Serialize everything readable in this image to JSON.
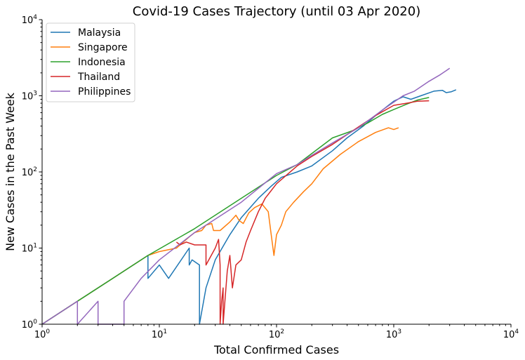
{
  "chart_data": {
    "type": "line",
    "title": "Covid-19 Cases Trajectory (until 03 Apr 2020)",
    "xlabel": "Total Confirmed Cases",
    "ylabel": "New Cases in the Past Week",
    "xscale": "log",
    "yscale": "log",
    "xlim": [
      1,
      10000
    ],
    "ylim": [
      1,
      10000
    ],
    "xticks": [
      {
        "base": "10",
        "exp": "0"
      },
      {
        "base": "10",
        "exp": "1"
      },
      {
        "base": "10",
        "exp": "2"
      },
      {
        "base": "10",
        "exp": "3"
      },
      {
        "base": "10",
        "exp": "4"
      }
    ],
    "yticks": [
      {
        "base": "10",
        "exp": "0"
      },
      {
        "base": "10",
        "exp": "1"
      },
      {
        "base": "10",
        "exp": "2"
      },
      {
        "base": "10",
        "exp": "3"
      },
      {
        "base": "10",
        "exp": "4"
      }
    ],
    "grid": false,
    "legend_position": "top-left",
    "series": [
      {
        "name": "Malaysia",
        "color": "#1f77b4",
        "points": [
          [
            1,
            1
          ],
          [
            2,
            2
          ],
          [
            4,
            4
          ],
          [
            8,
            8
          ],
          [
            8,
            4
          ],
          [
            10,
            6
          ],
          [
            12,
            4
          ],
          [
            18,
            10
          ],
          [
            18,
            6
          ],
          [
            19,
            7
          ],
          [
            22,
            6
          ],
          [
            22,
            1
          ],
          [
            25,
            3
          ],
          [
            30,
            7
          ],
          [
            40,
            15
          ],
          [
            50,
            25
          ],
          [
            70,
            45
          ],
          [
            90,
            65
          ],
          [
            110,
            85
          ],
          [
            150,
            100
          ],
          [
            200,
            120
          ],
          [
            300,
            190
          ],
          [
            400,
            280
          ],
          [
            550,
            400
          ],
          [
            700,
            550
          ],
          [
            900,
            750
          ],
          [
            1000,
            850
          ],
          [
            1200,
            970
          ],
          [
            1400,
            900
          ],
          [
            1700,
            1000
          ],
          [
            2200,
            1150
          ],
          [
            2600,
            1180
          ],
          [
            2800,
            1100
          ],
          [
            3100,
            1130
          ],
          [
            3400,
            1200
          ]
        ]
      },
      {
        "name": "Singapore",
        "color": "#ff7f0e",
        "points": [
          [
            1,
            1
          ],
          [
            2,
            2
          ],
          [
            4,
            4
          ],
          [
            8,
            8
          ],
          [
            10,
            9
          ],
          [
            14,
            10
          ],
          [
            18,
            14
          ],
          [
            20,
            16
          ],
          [
            23,
            17
          ],
          [
            25,
            20
          ],
          [
            28,
            21
          ],
          [
            29,
            17
          ],
          [
            33,
            17
          ],
          [
            40,
            22
          ],
          [
            45,
            27
          ],
          [
            48,
            23
          ],
          [
            52,
            21
          ],
          [
            58,
            29
          ],
          [
            65,
            34
          ],
          [
            75,
            38
          ],
          [
            85,
            30
          ],
          [
            90,
            15
          ],
          [
            95,
            8
          ],
          [
            100,
            15
          ],
          [
            110,
            20
          ],
          [
            120,
            30
          ],
          [
            140,
            40
          ],
          [
            170,
            55
          ],
          [
            200,
            70
          ],
          [
            250,
            110
          ],
          [
            350,
            170
          ],
          [
            500,
            250
          ],
          [
            700,
            330
          ],
          [
            900,
            380
          ],
          [
            1000,
            360
          ],
          [
            1100,
            380
          ]
        ]
      },
      {
        "name": "Indonesia",
        "color": "#2ca02c",
        "points": [
          [
            1,
            1
          ],
          [
            2,
            2
          ],
          [
            4,
            4
          ],
          [
            8,
            8
          ],
          [
            20,
            18
          ],
          [
            50,
            45
          ],
          [
            100,
            90
          ],
          [
            150,
            125
          ],
          [
            300,
            280
          ],
          [
            450,
            350
          ],
          [
            600,
            440
          ],
          [
            800,
            570
          ],
          [
            1000,
            660
          ],
          [
            1300,
            780
          ],
          [
            1600,
            880
          ],
          [
            2000,
            950
          ]
        ]
      },
      {
        "name": "Thailand",
        "color": "#d62728",
        "points": [
          [
            14,
            12
          ],
          [
            15,
            11
          ],
          [
            17,
            12
          ],
          [
            20,
            11
          ],
          [
            25,
            11
          ],
          [
            25,
            6
          ],
          [
            30,
            10
          ],
          [
            32,
            13
          ],
          [
            33,
            6
          ],
          [
            33,
            1
          ],
          [
            34,
            2
          ],
          [
            35,
            3
          ],
          [
            35,
            1
          ],
          [
            38,
            5
          ],
          [
            40,
            8
          ],
          [
            42,
            3
          ],
          [
            45,
            6
          ],
          [
            50,
            7
          ],
          [
            55,
            12
          ],
          [
            60,
            17
          ],
          [
            70,
            30
          ],
          [
            80,
            45
          ],
          [
            100,
            70
          ],
          [
            150,
            120
          ],
          [
            200,
            160
          ],
          [
            300,
            230
          ],
          [
            500,
            390
          ],
          [
            700,
            550
          ],
          [
            1000,
            750
          ],
          [
            1300,
            800
          ],
          [
            1600,
            850
          ],
          [
            2000,
            860
          ]
        ]
      },
      {
        "name": "Philippines",
        "color": "#9467bd",
        "points": [
          [
            1,
            1
          ],
          [
            2,
            2
          ],
          [
            2,
            1
          ],
          [
            3,
            2
          ],
          [
            3,
            1
          ],
          [
            5,
            1
          ],
          [
            5,
            2
          ],
          [
            7,
            4
          ],
          [
            10,
            7
          ],
          [
            20,
            16
          ],
          [
            50,
            40
          ],
          [
            100,
            95
          ],
          [
            150,
            125
          ],
          [
            200,
            165
          ],
          [
            300,
            240
          ],
          [
            500,
            380
          ],
          [
            800,
            650
          ],
          [
            1200,
            1000
          ],
          [
            1500,
            1150
          ],
          [
            2000,
            1550
          ],
          [
            2500,
            1900
          ],
          [
            3000,
            2300
          ]
        ]
      }
    ]
  }
}
